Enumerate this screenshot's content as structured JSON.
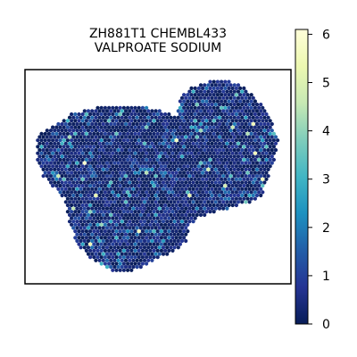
{
  "chart_data": {
    "type": "heatmap",
    "title_lines": [
      "ZH881T1 CHEMBL433",
      "VALPROATE SODIUM"
    ],
    "colorbar": {
      "vmin": 0,
      "vmax": 6.1,
      "ticks": [
        0,
        1,
        2,
        3,
        4,
        5,
        6
      ],
      "colormap": "YlGnBu",
      "stops": [
        [
          0.0,
          "#081d58"
        ],
        [
          0.125,
          "#253494"
        ],
        [
          0.25,
          "#225ea8"
        ],
        [
          0.375,
          "#1d91c0"
        ],
        [
          0.5,
          "#41b6c4"
        ],
        [
          0.625,
          "#7fcdbb"
        ],
        [
          0.75,
          "#c7e9b4"
        ],
        [
          0.875,
          "#edf8b1"
        ],
        [
          1.0,
          "#ffffd9"
        ]
      ]
    },
    "spot_value_distribution": {
      "typical_range": [
        0,
        1.5
      ],
      "sparse_high_values": [
        2,
        3,
        4,
        5,
        6
      ]
    }
  }
}
